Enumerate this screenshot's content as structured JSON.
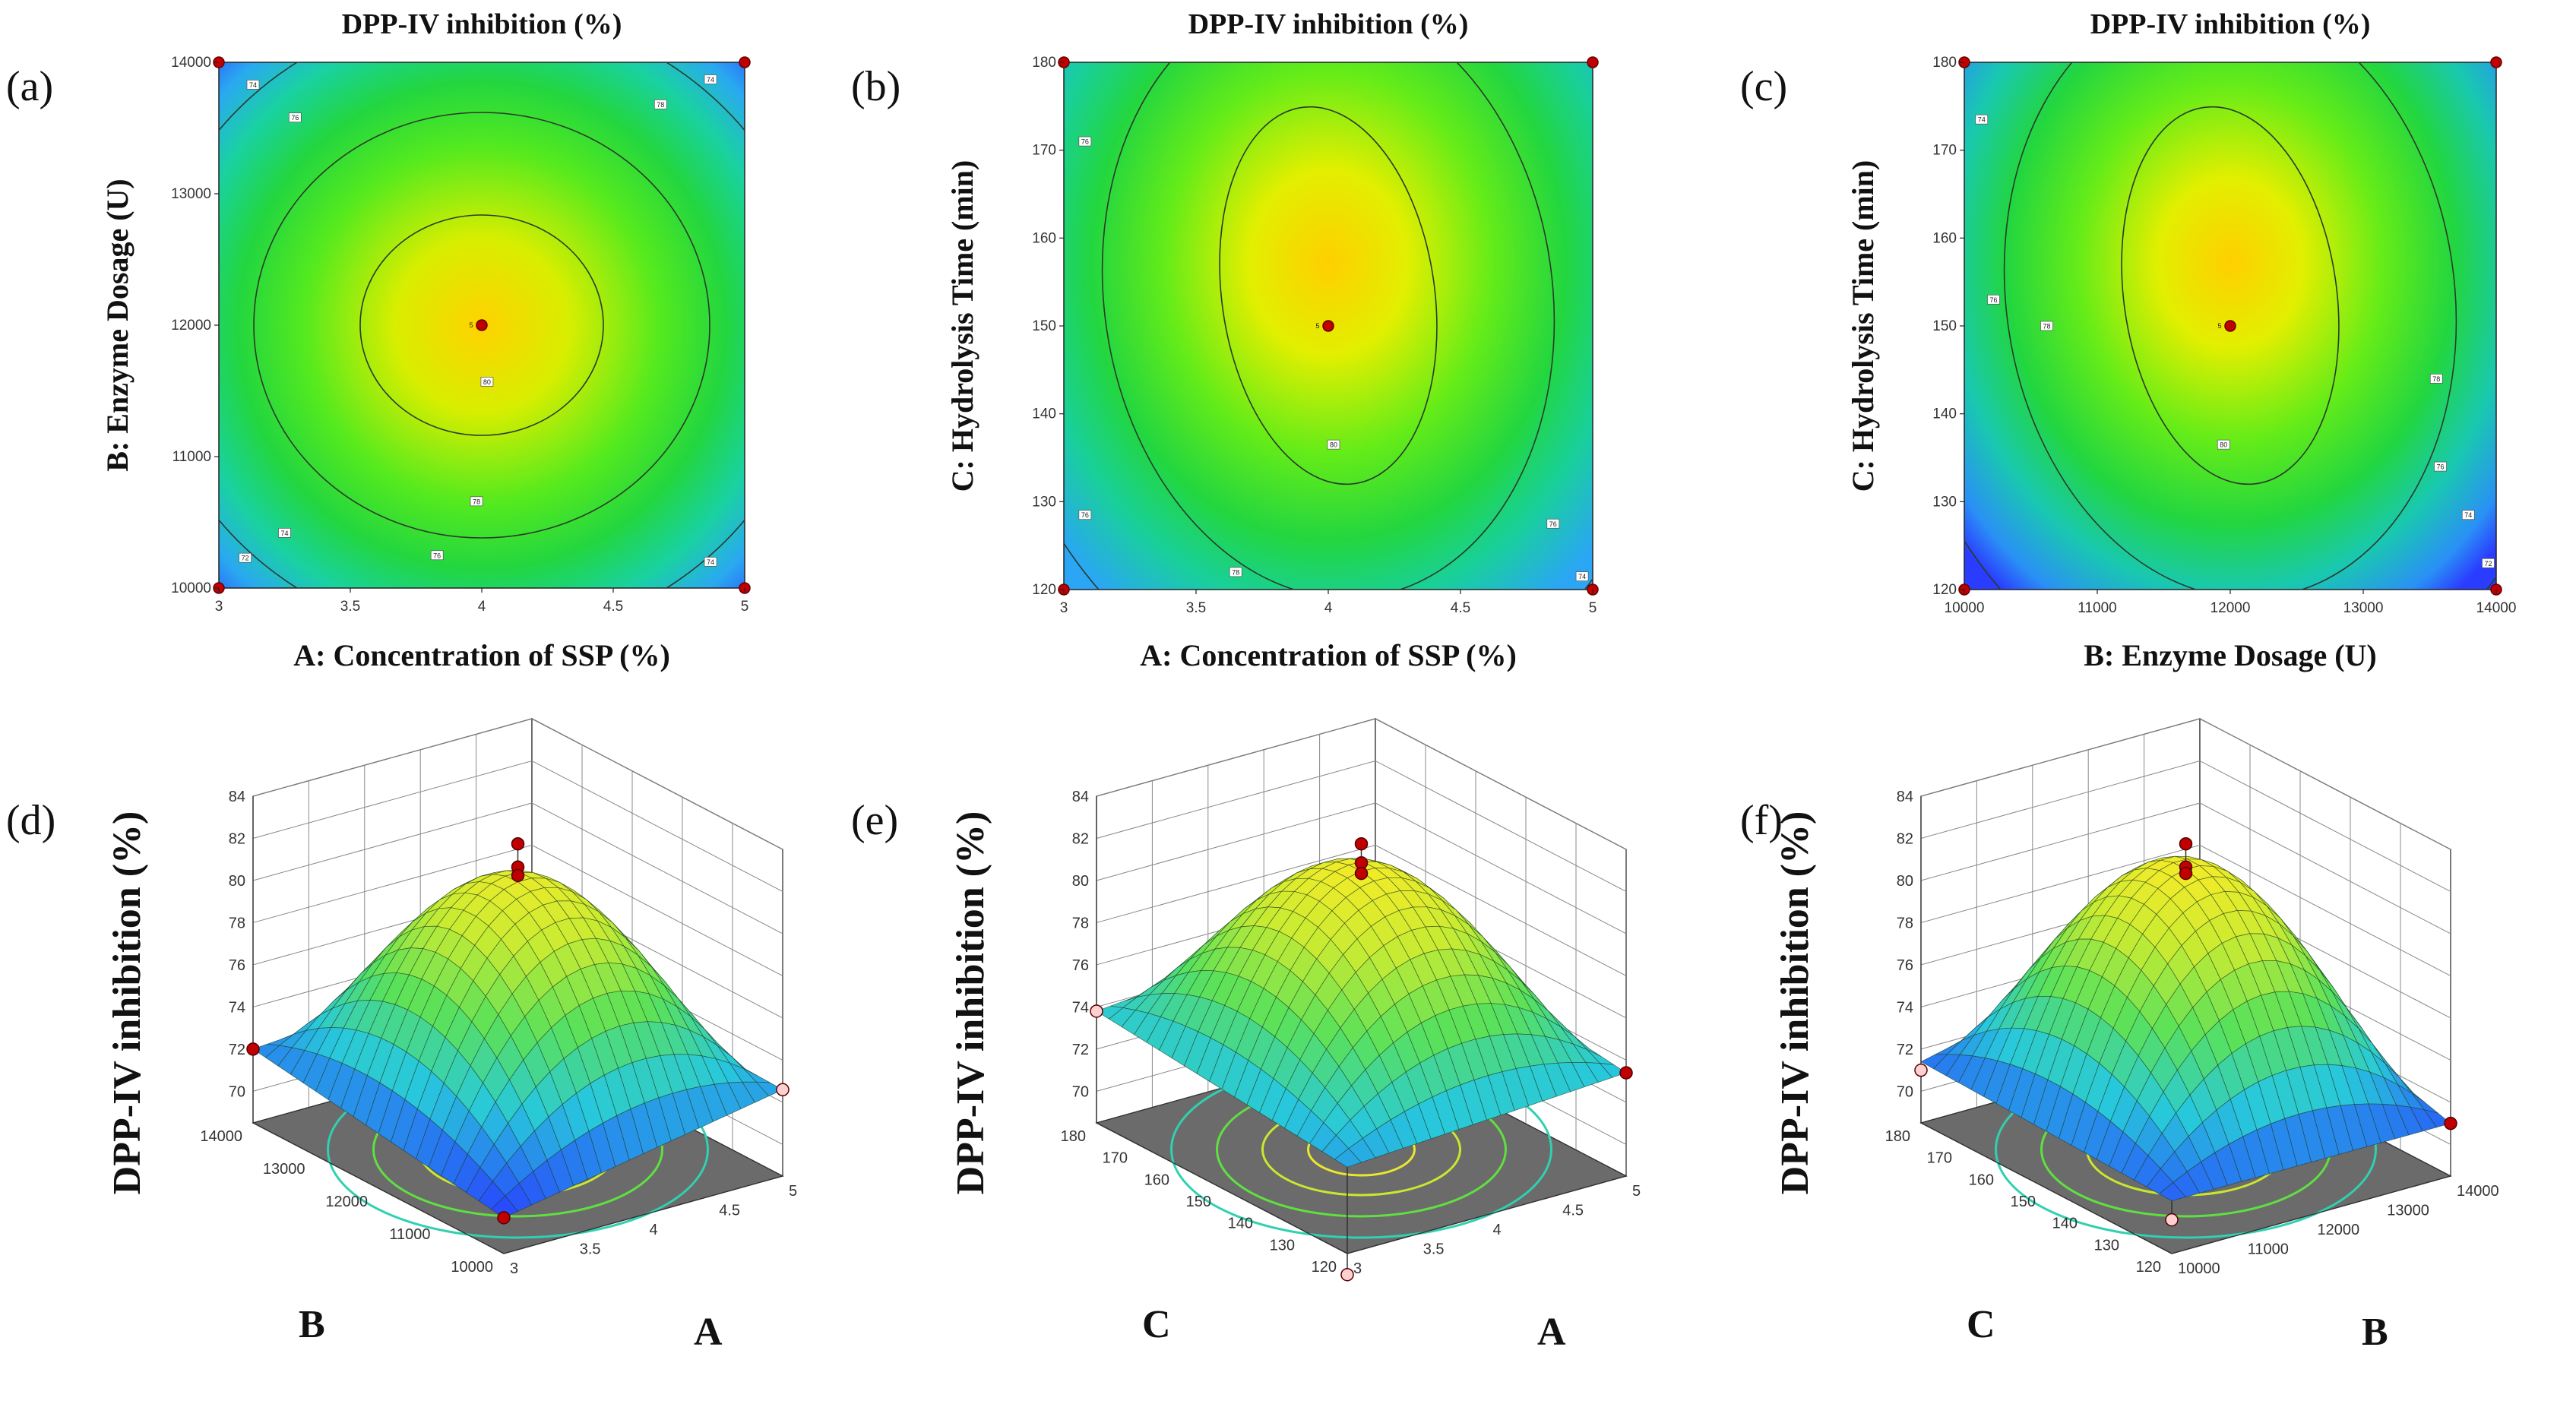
{
  "figure": {
    "response": "DPP-IV inhibition (%)"
  },
  "colors": {
    "low": "#1f3fff",
    "mid": "#22dd22",
    "high": "#ffd400",
    "floor": "#6b6b6b",
    "point": "#c00000",
    "pointLight": "#ffd0d0"
  },
  "chart_data": [
    {
      "id": "a",
      "letter": "(a)",
      "type": "contour",
      "title": "DPP-IV inhibition (%)",
      "xlabel": "A: Concentration of SSP (%)",
      "ylabel": "B: Enzyme Dosage (U)",
      "xlim": [
        3,
        5
      ],
      "ylim": [
        10000,
        14000
      ],
      "xticks": [
        "3",
        "3.5",
        "4",
        "4.5",
        "5"
      ],
      "yticks": [
        "10000",
        "11000",
        "12000",
        "13000",
        "14000"
      ],
      "contour_levels": [
        72,
        74,
        76,
        78,
        80
      ],
      "contour_labels": [
        {
          "text": "80",
          "x": 4.02,
          "y": 11570
        },
        {
          "text": "78",
          "x": 3.98,
          "y": 10660
        },
        {
          "text": "76",
          "x": 3.83,
          "y": 10250
        },
        {
          "text": "74",
          "x": 3.25,
          "y": 10420
        },
        {
          "text": "72",
          "x": 3.1,
          "y": 10230
        },
        {
          "text": "76",
          "x": 3.29,
          "y": 13580
        },
        {
          "text": "74",
          "x": 3.13,
          "y": 13830
        },
        {
          "text": "78",
          "x": 4.68,
          "y": 13680
        },
        {
          "text": "74",
          "x": 4.87,
          "y": 13870
        },
        {
          "text": "74",
          "x": 4.87,
          "y": 10200
        }
      ],
      "design_points": [
        {
          "x": 3,
          "y": 14000
        },
        {
          "x": 5,
          "y": 14000
        },
        {
          "x": 3,
          "y": 10000
        },
        {
          "x": 5,
          "y": 10000
        },
        {
          "x": 4,
          "y": 12000,
          "label": "5"
        }
      ]
    },
    {
      "id": "b",
      "letter": "(b)",
      "type": "contour",
      "title": "DPP-IV inhibition (%)",
      "xlabel": "A: Concentration of SSP (%)",
      "ylabel": "C: Hydrolysis Time (min)",
      "xlim": [
        3,
        5
      ],
      "ylim": [
        120,
        180
      ],
      "xticks": [
        "3",
        "3.5",
        "4",
        "4.5",
        "5"
      ],
      "yticks": [
        "120",
        "130",
        "140",
        "150",
        "160",
        "170",
        "180"
      ],
      "contour_levels": [
        74,
        76,
        78,
        80
      ],
      "contour_labels": [
        {
          "text": "80",
          "x": 4.02,
          "y": 136.5
        },
        {
          "text": "78",
          "x": 3.65,
          "y": 122
        },
        {
          "text": "76",
          "x": 3.08,
          "y": 128.5
        },
        {
          "text": "76",
          "x": 3.08,
          "y": 171
        },
        {
          "text": "76",
          "x": 4.85,
          "y": 127.5
        },
        {
          "text": "74",
          "x": 4.96,
          "y": 121.5
        }
      ],
      "design_points": [
        {
          "x": 3,
          "y": 180
        },
        {
          "x": 5,
          "y": 180
        },
        {
          "x": 3,
          "y": 120
        },
        {
          "x": 5,
          "y": 120
        },
        {
          "x": 4,
          "y": 150,
          "label": "5"
        }
      ]
    },
    {
      "id": "c",
      "letter": "(c)",
      "type": "contour",
      "title": "DPP-IV inhibition (%)",
      "xlabel": "B: Enzyme Dosage (U)",
      "ylabel": "C: Hydrolysis Time (min)",
      "xlim": [
        10000,
        14000
      ],
      "ylim": [
        120,
        180
      ],
      "xticks": [
        "10000",
        "11000",
        "12000",
        "13000",
        "14000"
      ],
      "yticks": [
        "120",
        "130",
        "140",
        "150",
        "160",
        "170",
        "180"
      ],
      "contour_levels": [
        72,
        74,
        76,
        78,
        80
      ],
      "contour_labels": [
        {
          "text": "80",
          "x": 11950,
          "y": 136.5
        },
        {
          "text": "78",
          "x": 10620,
          "y": 150
        },
        {
          "text": "76",
          "x": 10220,
          "y": 153
        },
        {
          "text": "74",
          "x": 10130,
          "y": 173.5
        },
        {
          "text": "78",
          "x": 13550,
          "y": 144
        },
        {
          "text": "76",
          "x": 13580,
          "y": 134
        },
        {
          "text": "74",
          "x": 13790,
          "y": 128.5
        },
        {
          "text": "72",
          "x": 13940,
          "y": 123
        }
      ],
      "design_points": [
        {
          "x": 10000,
          "y": 180
        },
        {
          "x": 14000,
          "y": 180
        },
        {
          "x": 10000,
          "y": 120
        },
        {
          "x": 14000,
          "y": 120
        },
        {
          "x": 12000,
          "y": 150,
          "label": "5"
        }
      ]
    },
    {
      "id": "d",
      "letter": "(d)",
      "type": "surface",
      "zlabel": "DPP-IV inhibition (%)",
      "zlim": [
        70,
        84
      ],
      "zticks": [
        "70",
        "72",
        "74",
        "76",
        "78",
        "80",
        "82",
        "84"
      ],
      "left_axis": {
        "name": "B",
        "ticks": [
          "10000",
          "11000",
          "12000",
          "13000",
          "14000"
        ]
      },
      "right_axis": {
        "name": "A",
        "ticks": [
          "3",
          "3.5",
          "4",
          "4.5",
          "5"
        ]
      },
      "corners_z": {
        "front": 70.2,
        "left": 72.0,
        "right": 72.6,
        "back": 73.0
      },
      "peak_z": 81.2,
      "design_points": [
        {
          "pos": "peak",
          "z": 83.0
        },
        {
          "pos": "peak",
          "z": 81.9
        },
        {
          "pos": "peak",
          "z": 81.5
        },
        {
          "pos": "left",
          "z": 72.0
        },
        {
          "pos": "right",
          "z": 72.6,
          "light": true
        },
        {
          "pos": "front",
          "z": 70.2
        }
      ]
    },
    {
      "id": "e",
      "letter": "(e)",
      "type": "surface",
      "zlabel": "DPP-IV inhibition (%)",
      "zlim": [
        70,
        84
      ],
      "zticks": [
        "70",
        "72",
        "74",
        "76",
        "78",
        "80",
        "82",
        "84"
      ],
      "left_axis": {
        "name": "C",
        "ticks": [
          "120",
          "130",
          "140",
          "150",
          "160",
          "170",
          "180"
        ]
      },
      "right_axis": {
        "name": "A",
        "ticks": [
          "3",
          "3.5",
          "4",
          "4.5",
          "5"
        ]
      },
      "corners_z": {
        "front": 72.6,
        "left": 73.8,
        "right": 73.4,
        "back": 75.0
      },
      "peak_z": 81.7,
      "design_points": [
        {
          "pos": "peak",
          "z": 83.0
        },
        {
          "pos": "peak",
          "z": 82.1
        },
        {
          "pos": "peak",
          "z": 81.6
        },
        {
          "pos": "left",
          "z": 73.8,
          "light": true
        },
        {
          "pos": "right",
          "z": 73.4
        },
        {
          "pos": "front",
          "z": 67.5,
          "light": true
        }
      ]
    },
    {
      "id": "f",
      "letter": "(f)",
      "type": "surface",
      "zlabel": "DPP-IV inhibition (%)",
      "zlim": [
        70,
        84
      ],
      "zticks": [
        "70",
        "72",
        "74",
        "76",
        "78",
        "80",
        "82",
        "84"
      ],
      "left_axis": {
        "name": "C",
        "ticks": [
          "120",
          "130",
          "140",
          "150",
          "160",
          "170",
          "180"
        ]
      },
      "right_axis": {
        "name": "B",
        "ticks": [
          "10000",
          "11000",
          "12000",
          "13000",
          "14000"
        ]
      },
      "corners_z": {
        "front": 71.0,
        "left": 71.4,
        "right": 71.0,
        "back": 74.5
      },
      "peak_z": 81.8,
      "design_points": [
        {
          "pos": "peak",
          "z": 83.0
        },
        {
          "pos": "peak",
          "z": 81.9
        },
        {
          "pos": "peak",
          "z": 81.6
        },
        {
          "pos": "left",
          "z": 71.0,
          "light": true
        },
        {
          "pos": "right",
          "z": 71.0
        },
        {
          "pos": "front",
          "z": 70.1,
          "light": true
        }
      ]
    }
  ]
}
